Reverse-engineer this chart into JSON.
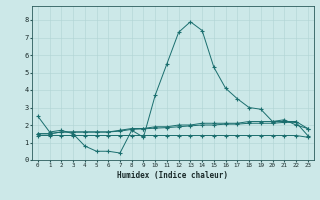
{
  "xlabel": "Humidex (Indice chaleur)",
  "bg_color": "#cce8e8",
  "line_color": "#1a6e6e",
  "xlim": [
    -0.5,
    23.5
  ],
  "ylim": [
    0,
    8.8
  ],
  "yticks": [
    0,
    1,
    2,
    3,
    4,
    5,
    6,
    7,
    8
  ],
  "xticks": [
    0,
    1,
    2,
    3,
    4,
    5,
    6,
    7,
    8,
    9,
    10,
    11,
    12,
    13,
    14,
    15,
    16,
    17,
    18,
    19,
    20,
    21,
    22,
    23
  ],
  "series": [
    {
      "x": [
        0,
        1,
        2,
        3,
        4,
        5,
        6,
        7,
        8,
        9,
        10,
        11,
        12,
        13,
        14,
        15,
        16,
        17,
        18,
        19,
        20,
        21,
        22,
        23
      ],
      "y": [
        2.5,
        1.6,
        1.7,
        1.5,
        0.8,
        0.5,
        0.5,
        0.4,
        1.7,
        1.3,
        3.7,
        5.5,
        7.3,
        7.9,
        7.4,
        5.3,
        4.1,
        3.5,
        3.0,
        2.9,
        2.2,
        2.3,
        2.0,
        1.8
      ]
    },
    {
      "x": [
        0,
        1,
        2,
        3,
        4,
        5,
        6,
        7,
        8,
        9,
        10,
        11,
        12,
        13,
        14,
        15,
        16,
        17,
        18,
        19,
        20,
        21,
        22,
        23
      ],
      "y": [
        1.5,
        1.5,
        1.6,
        1.6,
        1.6,
        1.6,
        1.6,
        1.7,
        1.8,
        1.8,
        1.9,
        1.9,
        2.0,
        2.0,
        2.1,
        2.1,
        2.1,
        2.1,
        2.2,
        2.2,
        2.2,
        2.2,
        2.2,
        1.8
      ]
    },
    {
      "x": [
        0,
        1,
        2,
        3,
        4,
        5,
        6,
        7,
        8,
        9,
        10,
        11,
        12,
        13,
        14,
        15,
        16,
        17,
        18,
        19,
        20,
        21,
        22,
        23
      ],
      "y": [
        1.5,
        1.5,
        1.6,
        1.6,
        1.6,
        1.6,
        1.6,
        1.65,
        1.75,
        1.78,
        1.82,
        1.85,
        1.9,
        1.95,
        2.0,
        2.0,
        2.05,
        2.05,
        2.1,
        2.1,
        2.1,
        2.15,
        2.15,
        1.4
      ]
    },
    {
      "x": [
        0,
        1,
        2,
        3,
        4,
        5,
        6,
        7,
        8,
        9,
        10,
        11,
        12,
        13,
        14,
        15,
        16,
        17,
        18,
        19,
        20,
        21,
        22,
        23
      ],
      "y": [
        1.4,
        1.4,
        1.4,
        1.4,
        1.4,
        1.4,
        1.4,
        1.4,
        1.4,
        1.4,
        1.4,
        1.4,
        1.4,
        1.4,
        1.4,
        1.4,
        1.4,
        1.4,
        1.4,
        1.4,
        1.4,
        1.4,
        1.4,
        1.3
      ]
    }
  ]
}
